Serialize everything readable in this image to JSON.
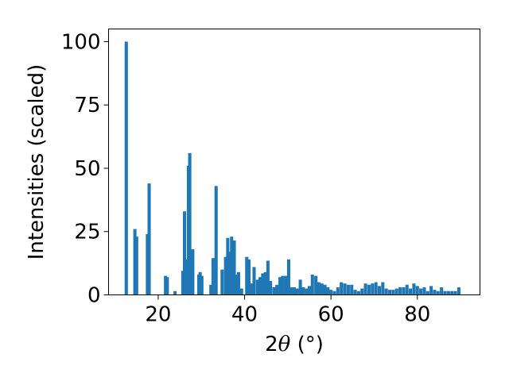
{
  "chart_data": {
    "type": "bar",
    "xlabel": "2θ (°)",
    "xlabel_parts": {
      "prefix": "2",
      "theta": "θ",
      "suffix": " (°)"
    },
    "ylabel": "Intensities (scaled)",
    "xlim": [
      8.5,
      94.5
    ],
    "ylim": [
      0,
      105
    ],
    "xticks": [
      20,
      40,
      60,
      80
    ],
    "yticks": [
      0,
      25,
      50,
      75,
      100
    ],
    "xtick_labels": [
      "20",
      "40",
      "60",
      "80"
    ],
    "ytick_labels": [
      "0",
      "25",
      "50",
      "75",
      "100"
    ],
    "bar_color": "#1f77b4",
    "grid": false,
    "x": [
      12.6,
      14.6,
      15.0,
      17.5,
      17.9,
      21.7,
      22.1,
      23.9,
      25.7,
      26.1,
      26.5,
      27.0,
      27.3,
      27.6,
      28.0,
      29.4,
      29.7,
      30.1,
      32.2,
      32.7,
      33.4,
      34.8,
      35.6,
      36.1,
      36.4,
      37.0,
      37.6,
      38.0,
      38.6,
      39.3,
      40.5,
      41.0,
      41.5,
      42.2,
      43.0,
      43.6,
      44.2,
      44.8,
      45.4,
      46.0,
      46.8,
      47.5,
      48.2,
      48.8,
      49.5,
      50.2,
      50.8,
      51.5,
      52.2,
      52.9,
      53.6,
      54.3,
      55.0,
      55.7,
      56.5,
      57.2,
      57.9,
      58.6,
      59.3,
      60.0,
      60.8,
      61.6,
      62.4,
      63.2,
      64.0,
      64.8,
      65.6,
      66.4,
      67.2,
      68.0,
      68.8,
      69.6,
      70.4,
      71.2,
      72.0,
      72.8,
      73.6,
      74.4,
      75.2,
      76.0,
      76.8,
      77.6,
      78.4,
      79.2,
      80.0,
      80.8,
      81.6,
      82.4,
      83.2,
      84.0,
      84.8,
      85.6,
      86.4,
      87.2,
      88.0,
      88.8,
      89.6
    ],
    "values": [
      100,
      26,
      23,
      24,
      44,
      7.5,
      7,
      1.5,
      9.5,
      33,
      14,
      51,
      56,
      16,
      18,
      8,
      9,
      7.5,
      4,
      14.5,
      43,
      10,
      15,
      22.5,
      17,
      23,
      21.5,
      8,
      9,
      2.5,
      15,
      14,
      4.5,
      11,
      6,
      7,
      8.5,
      9,
      13.5,
      5.5,
      3,
      4,
      7,
      7.5,
      7.5,
      14,
      3,
      3,
      2.5,
      6,
      3,
      2.5,
      3.5,
      8,
      7.5,
      5,
      4.5,
      4,
      3,
      2,
      1.5,
      3,
      5,
      4.5,
      4,
      4,
      2,
      1.5,
      2.5,
      4.5,
      4,
      4.5,
      5,
      3.5,
      5,
      2.5,
      2,
      2,
      2.5,
      3,
      3,
      4,
      2.5,
      4.5,
      3.5,
      2.5,
      3,
      1.5,
      3.5,
      2,
      1.5,
      3,
      1.5,
      1.5,
      1.5,
      1.5,
      3
    ]
  }
}
